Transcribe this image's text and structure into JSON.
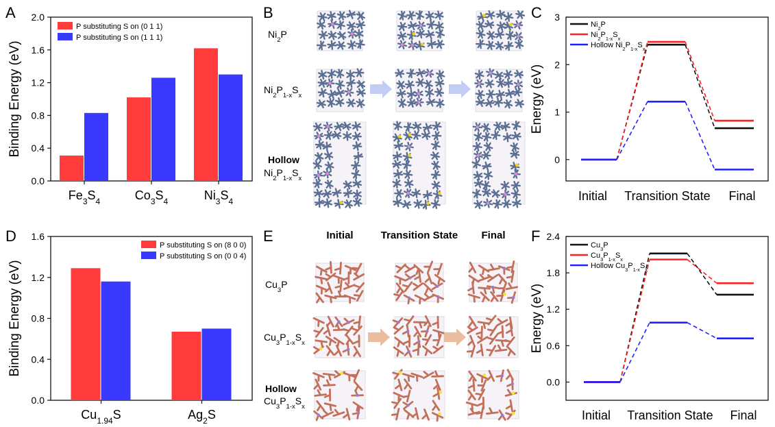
{
  "figure": {
    "panel_letters": [
      "A",
      "B",
      "C",
      "D",
      "E",
      "F"
    ]
  },
  "chart_data": [
    {
      "panel": "A",
      "type": "bar",
      "ylabel": "Binding Energy (eV)",
      "ylim": [
        0,
        2.0
      ],
      "yticks": [
        "0.0",
        "0.4",
        "0.8",
        "1.2",
        "1.6",
        "2.0"
      ],
      "categories": [
        {
          "base": "Fe",
          "sub1": "3",
          "mid": "S",
          "sub2": "4"
        },
        {
          "base": "Co",
          "sub1": "3",
          "mid": "S",
          "sub2": "4"
        },
        {
          "base": "Ni",
          "sub1": "3",
          "mid": "S",
          "sub2": "4"
        }
      ],
      "series": [
        {
          "name": "P substituting S on (0 1 1)",
          "color": "#ff3b3b",
          "values": [
            0.31,
            1.02,
            1.62
          ]
        },
        {
          "name": "P substituting S on (1 1 1)",
          "color": "#3a3aff",
          "values": [
            0.83,
            1.26,
            1.3
          ]
        }
      ],
      "legend_position": "top-left"
    },
    {
      "panel": "C",
      "type": "line",
      "ylabel": "Energy (eV)",
      "ylim": [
        -0.45,
        3.0
      ],
      "yticks": [
        "0",
        "1",
        "2",
        "3"
      ],
      "ytick_values": [
        0,
        1,
        2,
        3
      ],
      "xlabels": [
        "Initial",
        "Transition State",
        "Final"
      ],
      "series": [
        {
          "name": "Ni2P",
          "label": [
            [
              "Ni",
              ""
            ],
            [
              "2",
              "sub"
            ],
            [
              "P",
              ""
            ]
          ],
          "color": "#111111",
          "values": [
            0,
            2.42,
            0.66
          ]
        },
        {
          "name": "Ni2P1-xSx",
          "label": [
            [
              "Ni",
              ""
            ],
            [
              "2",
              "sub"
            ],
            [
              "P",
              ""
            ],
            [
              "1-x",
              "sub"
            ],
            [
              "S",
              ""
            ],
            [
              "x",
              "sub"
            ]
          ],
          "color": "#ff2020",
          "values": [
            0,
            2.48,
            0.82
          ]
        },
        {
          "name": "Hollow Ni2P1-xSx",
          "label": [
            [
              "Hollow Ni",
              ""
            ],
            [
              "2",
              "sub"
            ],
            [
              "P",
              ""
            ],
            [
              "1-x",
              "sub"
            ],
            [
              "S",
              ""
            ],
            [
              "x",
              "sub"
            ]
          ],
          "color": "#2020ff",
          "values": [
            0,
            1.22,
            -0.21
          ]
        }
      ]
    },
    {
      "panel": "D",
      "type": "bar",
      "ylabel": "Binding Energy (eV)",
      "ylim": [
        0,
        1.6
      ],
      "yticks": [
        "0.0",
        "0.4",
        "0.8",
        "1.2",
        "1.6"
      ],
      "categories": [
        {
          "base": "Cu",
          "sub1": "1.94",
          "mid": "S",
          "sub2": ""
        },
        {
          "base": "Ag",
          "sub1": "2",
          "mid": "S",
          "sub2": ""
        }
      ],
      "series": [
        {
          "name": "P substituting S on (8 0 0)",
          "color": "#ff3b3b",
          "values": [
            1.29,
            0.67
          ]
        },
        {
          "name": "P substituting S on (0 0 4)",
          "color": "#3a3aff",
          "values": [
            1.16,
            0.7
          ]
        }
      ],
      "legend_position": "top-right"
    },
    {
      "panel": "F",
      "type": "line",
      "ylabel": "Energy (eV)",
      "ylim": [
        -0.3,
        2.4
      ],
      "yticks": [
        "0.0",
        "0.6",
        "1.2",
        "1.8",
        "2.4"
      ],
      "ytick_values": [
        0,
        0.6,
        1.2,
        1.8,
        2.4
      ],
      "xlabels": [
        "Initial",
        "Transition State",
        "Final"
      ],
      "series": [
        {
          "name": "Cu3P",
          "label": [
            [
              "Cu",
              ""
            ],
            [
              "3",
              "sub"
            ],
            [
              "P",
              ""
            ]
          ],
          "color": "#111111",
          "values": [
            0,
            2.12,
            1.44
          ]
        },
        {
          "name": "Cu3P1-xSx",
          "label": [
            [
              "Cu",
              ""
            ],
            [
              "3",
              "sub"
            ],
            [
              "P",
              ""
            ],
            [
              "1-x",
              "sub"
            ],
            [
              "S",
              ""
            ],
            [
              "x",
              "sub"
            ]
          ],
          "color": "#ff2020",
          "values": [
            0,
            2.02,
            1.63
          ]
        },
        {
          "name": "Hollow Cu3P1-xSx",
          "label": [
            [
              "Hollow Cu",
              ""
            ],
            [
              "3",
              "sub"
            ],
            [
              "P",
              ""
            ],
            [
              "1-x",
              "sub"
            ],
            [
              "S",
              ""
            ],
            [
              "x",
              "sub"
            ]
          ],
          "color": "#2020ff",
          "values": [
            0,
            0.98,
            0.72
          ]
        }
      ]
    }
  ],
  "panel_b": {
    "rows": [
      [
        [
          "Ni",
          ""
        ],
        [
          "2",
          "sub"
        ],
        [
          "P",
          ""
        ]
      ],
      [
        [
          "Ni",
          ""
        ],
        [
          "2",
          "sub"
        ],
        [
          "P",
          ""
        ],
        [
          "1-x",
          "sub"
        ],
        [
          "S",
          ""
        ],
        [
          "x",
          "sub"
        ]
      ],
      [
        [
          "Hollow",
          ""
        ]
      ],
      [
        [
          "Ni",
          ""
        ],
        [
          "2",
          "sub"
        ],
        [
          "P",
          ""
        ],
        [
          "1-x",
          "sub"
        ],
        [
          "S",
          ""
        ],
        [
          "x",
          "sub"
        ]
      ]
    ],
    "atom_color": "#5a6f92",
    "dopant_color": "#f0d21e",
    "p_color": "#d98ad8",
    "arrow_color": "#b9c3f2"
  },
  "panel_e": {
    "column_headers": [
      "Initial",
      "Transition State",
      "Final"
    ],
    "rows": [
      [
        [
          "Cu",
          ""
        ],
        [
          "3",
          "sub"
        ],
        [
          "P",
          ""
        ]
      ],
      [
        [
          "Cu",
          ""
        ],
        [
          "3",
          "sub"
        ],
        [
          "P",
          ""
        ],
        [
          "1-x",
          "sub"
        ],
        [
          "S",
          ""
        ],
        [
          "x",
          "sub"
        ]
      ],
      [
        [
          "Hollow",
          ""
        ]
      ],
      [
        [
          "Cu",
          ""
        ],
        [
          "3",
          "sub"
        ],
        [
          "P",
          ""
        ],
        [
          "1-x",
          "sub"
        ],
        [
          "S",
          ""
        ],
        [
          "x",
          "sub"
        ]
      ]
    ],
    "atom_color": "#c2705a",
    "dopant_color": "#f0e63a",
    "p_color": "#a07ad0",
    "arrow_color": "#e9b08f"
  }
}
